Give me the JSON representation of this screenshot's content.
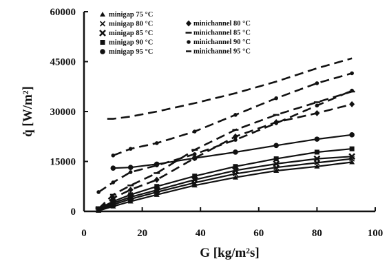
{
  "chart_data": {
    "type": "line",
    "xlabel": "G [kg/m²s]",
    "ylabel": "q̇ [W/m²]",
    "xlim": [
      0,
      100
    ],
    "ylim": [
      0,
      60000
    ],
    "xticks": [
      "0",
      "20",
      "40",
      "60",
      "80",
      "100"
    ],
    "yticks": [
      "0",
      "15000",
      "30000",
      "45000",
      "60000"
    ],
    "grid": false,
    "legend_placement": "top-left",
    "series": [
      {
        "name": "minigap 75 °C",
        "style": "solid",
        "marker": "triangle",
        "x": [
          5,
          10,
          16,
          25,
          38,
          52,
          66,
          80,
          92
        ],
        "y": [
          200,
          1500,
          3000,
          5000,
          7800,
          10200,
          12200,
          13500,
          14800
        ]
      },
      {
        "name": "minigap 80 °C",
        "style": "solid",
        "marker": "x",
        "x": [
          5,
          10,
          16,
          25,
          38,
          52,
          66,
          80,
          92
        ],
        "y": [
          400,
          2000,
          3700,
          5800,
          8600,
          11300,
          13200,
          14600,
          15800
        ]
      },
      {
        "name": "minigap 85 °C",
        "style": "solid",
        "marker": "x-bold",
        "x": [
          5,
          10,
          16,
          25,
          38,
          52,
          66,
          80,
          92
        ],
        "y": [
          600,
          2500,
          4300,
          6400,
          9500,
          12300,
          14300,
          15800,
          16500
        ]
      },
      {
        "name": "minigap 90 °C",
        "style": "solid",
        "marker": "square",
        "x": [
          5,
          10,
          16,
          25,
          38,
          52,
          66,
          80,
          92
        ],
        "y": [
          800,
          3000,
          5000,
          7500,
          10600,
          13500,
          15800,
          17800,
          18800
        ]
      },
      {
        "name": "minigap 95 °C",
        "style": "solid",
        "marker": "circle",
        "x": [
          10,
          16,
          25,
          38,
          52,
          66,
          80,
          92
        ],
        "y": [
          13000,
          13200,
          14200,
          16000,
          17800,
          19800,
          21700,
          23000
        ]
      },
      {
        "name": "minichannel 80 °C",
        "style": "dashed",
        "marker": "diamond",
        "x": [
          5,
          10,
          16,
          25,
          38,
          52,
          66,
          80,
          92
        ],
        "y": [
          600,
          4000,
          6500,
          9500,
          16000,
          22500,
          26800,
          29500,
          32200
        ]
      },
      {
        "name": "minichannel 85 °C",
        "style": "dashed",
        "marker": "dash",
        "x": [
          5,
          10,
          16,
          25,
          38,
          52,
          66,
          80,
          92
        ],
        "y": [
          800,
          5000,
          7800,
          11500,
          18500,
          24500,
          29000,
          32800,
          36000
        ]
      },
      {
        "name": "minichannel 90 °C",
        "style": "dashed",
        "marker": "dot",
        "x": [
          5,
          10,
          16,
          25,
          38,
          52,
          66,
          80,
          92
        ],
        "y": [
          5800,
          8700,
          11800,
          13800,
          17200,
          21500,
          26500,
          31800,
          36300
        ]
      },
      {
        "name": "minichannel 95 °C",
        "style": "dashed",
        "marker": "none",
        "x": [
          8,
          10,
          16,
          25,
          38,
          52,
          66,
          80,
          92
        ],
        "y": [
          27800,
          27800,
          28500,
          30000,
          32500,
          35500,
          39000,
          43000,
          46000
        ]
      },
      {
        "name": "",
        "style": "dashed",
        "marker": "dot",
        "x": [
          10,
          16,
          25,
          38,
          52,
          66,
          80,
          92
        ],
        "y": [
          16800,
          18800,
          20500,
          24000,
          29000,
          34000,
          38500,
          41500
        ]
      }
    ]
  }
}
